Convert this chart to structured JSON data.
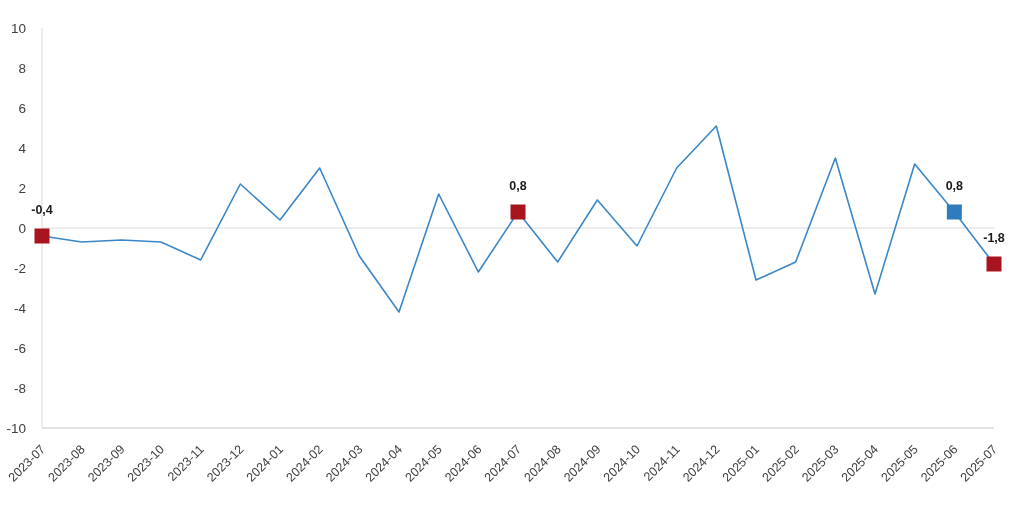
{
  "chart_data": {
    "type": "line",
    "categories": [
      "2023-07",
      "2023-08",
      "2023-09",
      "2023-10",
      "2023-11",
      "2023-12",
      "2024-01",
      "2024-02",
      "2024-03",
      "2024-04",
      "2024-05",
      "2024-06",
      "2024-07",
      "2024-08",
      "2024-09",
      "2024-10",
      "2024-11",
      "2024-12",
      "2025-01",
      "2025-02",
      "2025-03",
      "2025-04",
      "2025-05",
      "2025-06",
      "2025-07"
    ],
    "series": [
      {
        "color": "#3a87c8",
        "values": [
          -0.4,
          -0.7,
          -0.6,
          -0.7,
          -1.6,
          2.2,
          0.4,
          3.0,
          -1.4,
          -4.2,
          1.7,
          -2.2,
          0.8,
          -1.7,
          1.4,
          -0.9,
          3.0,
          5.1,
          -2.6,
          -1.7,
          3.5,
          -3.3,
          3.2,
          0.8,
          -1.8
        ]
      },
      {
        "type": "scatter",
        "marker": "square",
        "color": "#a8141d",
        "values": [
          -0.4,
          null,
          null,
          null,
          null,
          null,
          null,
          null,
          null,
          null,
          null,
          null,
          0.8,
          null,
          null,
          null,
          null,
          null,
          null,
          null,
          null,
          null,
          null,
          null,
          -1.8
        ],
        "value_labels": [
          "-0,4",
          null,
          null,
          null,
          null,
          null,
          null,
          null,
          null,
          null,
          null,
          null,
          "0,8",
          null,
          null,
          null,
          null,
          null,
          null,
          null,
          null,
          null,
          null,
          null,
          "-1,8"
        ]
      },
      {
        "type": "scatter",
        "marker": "square",
        "color": "#2f7bbd",
        "values": [
          null,
          null,
          null,
          null,
          null,
          null,
          null,
          null,
          null,
          null,
          null,
          null,
          null,
          null,
          null,
          null,
          null,
          null,
          null,
          null,
          null,
          null,
          null,
          0.8,
          null
        ],
        "value_labels": [
          null,
          null,
          null,
          null,
          null,
          null,
          null,
          null,
          null,
          null,
          null,
          null,
          null,
          null,
          null,
          null,
          null,
          null,
          null,
          null,
          null,
          null,
          null,
          "0,8",
          null
        ]
      }
    ],
    "ylim": [
      -10,
      10
    ],
    "yticks": [
      -10,
      -8,
      -6,
      -4,
      -2,
      0,
      2,
      4,
      6,
      8,
      10
    ],
    "ref_lines": [
      {
        "axis": "y",
        "value": 0,
        "color": "#e6e6e6"
      }
    ]
  }
}
